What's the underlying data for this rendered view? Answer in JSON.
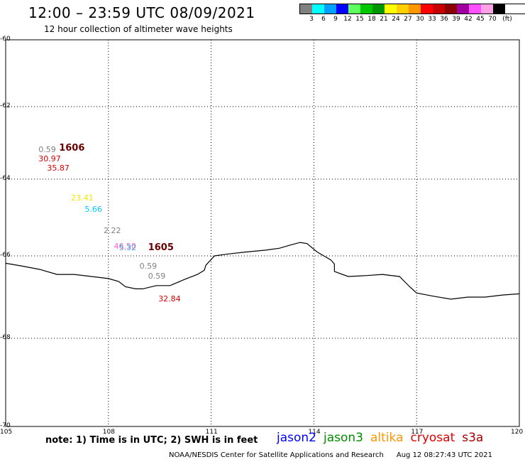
{
  "header": {
    "title": "12:00 – 23:59 UTC 08/09/2021",
    "subtitle": "12 hour collection of altimeter wave heights"
  },
  "scale": {
    "unit": "(ft)",
    "bins": [
      {
        "label": "3",
        "color": "#808080"
      },
      {
        "label": "6",
        "color": "#00ffff"
      },
      {
        "label": "9",
        "color": "#00a0ff"
      },
      {
        "label": "12",
        "color": "#0000ff"
      },
      {
        "label": "15",
        "color": "#60ff60"
      },
      {
        "label": "18",
        "color": "#00c800"
      },
      {
        "label": "21",
        "color": "#009600"
      },
      {
        "label": "24",
        "color": "#ffff00"
      },
      {
        "label": "27",
        "color": "#ffd000"
      },
      {
        "label": "30",
        "color": "#ff9600"
      },
      {
        "label": "33",
        "color": "#ff0000"
      },
      {
        "label": "36",
        "color": "#c80000"
      },
      {
        "label": "39",
        "color": "#8c0000"
      },
      {
        "label": "42",
        "color": "#a000a0"
      },
      {
        "label": "45",
        "color": "#ff50ff"
      },
      {
        "label": "70",
        "color": "#ffa0e6"
      },
      {
        "label": "",
        "color": "#000000"
      }
    ]
  },
  "axes": {
    "lat_ticks": [
      {
        "label": "-60",
        "value": -60
      },
      {
        "label": "-62",
        "value": -62
      },
      {
        "label": "-64",
        "value": -64
      },
      {
        "label": "-66",
        "value": -66
      },
      {
        "label": "-68",
        "value": -68
      },
      {
        "label": "-70",
        "value": -70
      }
    ],
    "lon_ticks": [
      {
        "label": "105",
        "value": 105
      },
      {
        "label": "108",
        "value": 108
      },
      {
        "label": "111",
        "value": 111
      },
      {
        "label": "114",
        "value": 114
      },
      {
        "label": "117",
        "value": 117
      },
      {
        "label": "120",
        "value": 120
      }
    ]
  },
  "observations": [
    {
      "text": "0.59",
      "lon": 106.0,
      "lat": -63.2,
      "color": "grey"
    },
    {
      "text": "30.97",
      "lon": 106.0,
      "lat": -63.45,
      "color": "red"
    },
    {
      "text": "35.87",
      "lon": 106.25,
      "lat": -63.7,
      "color": "red"
    },
    {
      "text": "23.41",
      "lon": 106.95,
      "lat": -64.5,
      "color": "yellow"
    },
    {
      "text": "5.66",
      "lon": 107.35,
      "lat": -64.8,
      "color": "cyan"
    },
    {
      "text": "2.22",
      "lon": 107.9,
      "lat": -65.35,
      "color": "grey"
    },
    {
      "text": "46.50",
      "lon": 108.2,
      "lat": -65.75,
      "color": "pink"
    },
    {
      "text": "5.32",
      "lon": 108.35,
      "lat": -65.8,
      "color": "steel"
    },
    {
      "text": "0.59",
      "lon": 108.95,
      "lat": -66.25,
      "color": "grey"
    },
    {
      "text": "0.59",
      "lon": 109.2,
      "lat": -66.5,
      "color": "grey"
    },
    {
      "text": "32.84",
      "lon": 109.5,
      "lat": -67.05,
      "color": "red"
    }
  ],
  "passes": [
    {
      "text": "1606",
      "lon": 106.6,
      "lat": -63.15
    },
    {
      "text": "1605",
      "lon": 109.2,
      "lat": -65.8
    }
  ],
  "coastline": [
    [
      105.0,
      -66.18
    ],
    [
      105.5,
      -66.25
    ],
    [
      106.0,
      -66.33
    ],
    [
      106.5,
      -66.45
    ],
    [
      107.0,
      -66.45
    ],
    [
      107.5,
      -66.5
    ],
    [
      108.0,
      -66.55
    ],
    [
      108.3,
      -66.62
    ],
    [
      108.5,
      -66.75
    ],
    [
      108.8,
      -66.8
    ],
    [
      109.0,
      -66.8
    ],
    [
      109.4,
      -66.72
    ],
    [
      109.8,
      -66.72
    ],
    [
      110.2,
      -66.58
    ],
    [
      110.6,
      -66.45
    ],
    [
      110.8,
      -66.35
    ],
    [
      110.85,
      -66.22
    ],
    [
      111.1,
      -66.0
    ],
    [
      111.5,
      -65.95
    ],
    [
      112.0,
      -65.9
    ],
    [
      112.6,
      -65.85
    ],
    [
      113.0,
      -65.8
    ],
    [
      113.3,
      -65.72
    ],
    [
      113.6,
      -65.65
    ],
    [
      113.8,
      -65.68
    ],
    [
      114.1,
      -65.9
    ],
    [
      114.5,
      -66.1
    ],
    [
      114.6,
      -66.2
    ],
    [
      114.6,
      -66.38
    ],
    [
      115.0,
      -66.5
    ],
    [
      115.5,
      -66.48
    ],
    [
      116.0,
      -66.45
    ],
    [
      116.5,
      -66.5
    ],
    [
      116.8,
      -66.75
    ],
    [
      117.0,
      -66.9
    ],
    [
      117.5,
      -66.98
    ],
    [
      118.0,
      -67.05
    ],
    [
      118.5,
      -67.0
    ],
    [
      119.0,
      -67.0
    ],
    [
      119.5,
      -66.95
    ],
    [
      120.0,
      -66.92
    ]
  ],
  "footer": {
    "note": "note:  1) Time is in UTC;  2) SWH is in feet",
    "satellites": [
      {
        "name": "jason2",
        "color": "#0000ff"
      },
      {
        "name": "jason3",
        "color": "#008c00"
      },
      {
        "name": "altika",
        "color": "#ff9600"
      },
      {
        "name": "cryosat",
        "color": "#e00000"
      },
      {
        "name": "s3a",
        "color": "#a00000"
      }
    ],
    "credit": "NOAA/NESDIS Center for Satellite Applications and Research",
    "timestamp": "Aug 12 08:27:43 UTC 2021"
  }
}
